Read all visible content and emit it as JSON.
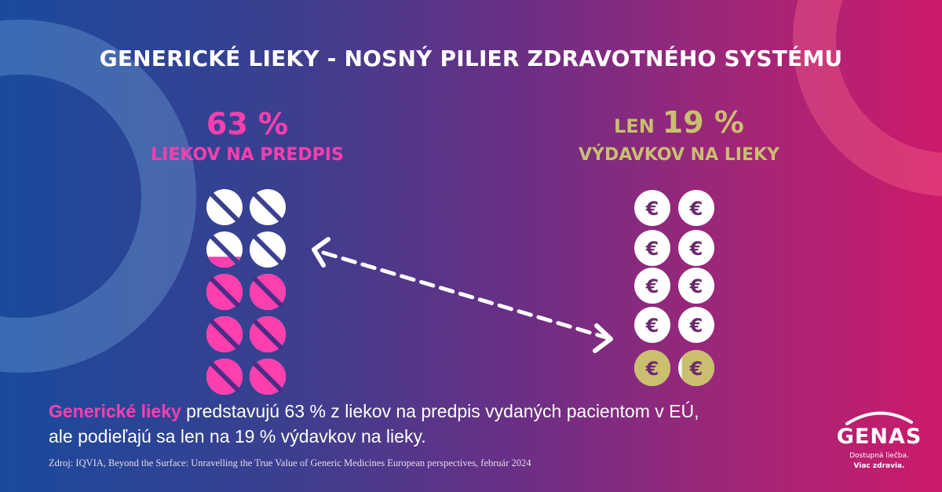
{
  "title": "GENERICKÉ LIEKY - NOSNÝ PILIER ZDRAVOTNÉHO SYSTÉMU",
  "left": {
    "percent": "63 %",
    "subtitle": "LIEKOV NA PREDPIS",
    "share": 0.63
  },
  "right": {
    "prefix": "LEN",
    "percent": "19 %",
    "subtitle": "VÝDAVKOV NA LIEKY",
    "share": 0.19
  },
  "coin_symbol": "€",
  "body": {
    "highlight": "Generické lieky",
    "line1": " predstavujú 63 % z liekov na predpis vydaných pacientom v EÚ,",
    "line2": "ale podieľajú sa len na 19 % výdavkov na lieky."
  },
  "source": "Zdroj: IQVIA, Beyond the Surface: Unravelling the True Value of Generic Medicines European perspectives, február 2024",
  "logo": {
    "name": "GENAS",
    "tagline1": "Dostupná liečba.",
    "tagline2": "Viac zdravia."
  },
  "colors": {
    "pink": "#ff3fae",
    "gold": "#c9bf6e",
    "coin_text": "#6b2a6e"
  },
  "icons": {
    "pill": "pill-icon",
    "coin": "euro-coin-icon",
    "arrow": "double-arrow-icon"
  }
}
